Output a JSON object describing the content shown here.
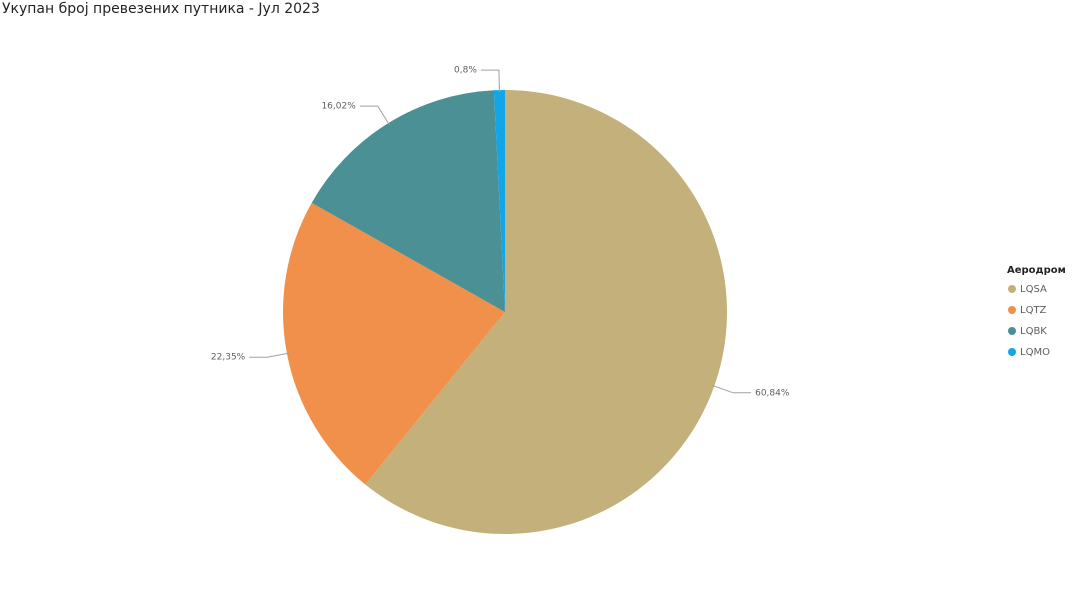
{
  "chart_data": {
    "type": "pie",
    "title": "Укупан број превезених путника - Јул 2023",
    "legend_title": "Аеродром",
    "categories": [
      "LQSA",
      "LQTZ",
      "LQBK",
      "LQMO"
    ],
    "values": [
      60.84,
      22.35,
      16.02,
      0.8
    ],
    "value_labels": [
      "60,84%",
      "22,35%",
      "16,02%",
      "0,8%"
    ],
    "colors": [
      "#c4b07b",
      "#f0904a",
      "#4a9094",
      "#12a5e8"
    ],
    "legend": "right"
  }
}
